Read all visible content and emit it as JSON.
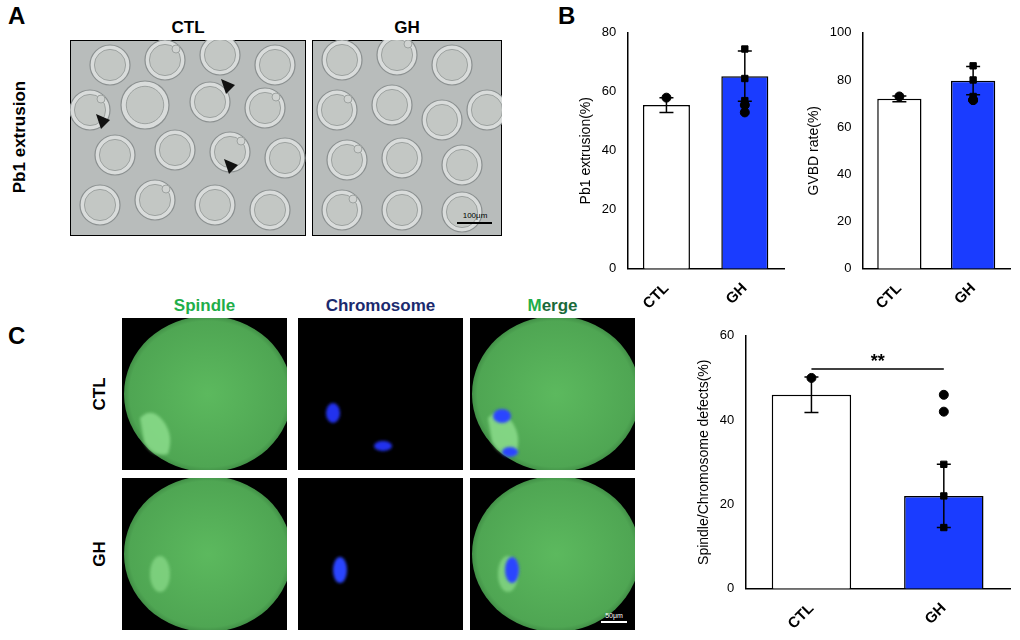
{
  "panels": {
    "A": {
      "label": "A",
      "row_label": "Pb1 extrusion",
      "columns": [
        "CTL",
        "GH"
      ],
      "scale_bar": "100μm"
    },
    "B": {
      "label": "B"
    },
    "C": {
      "label": "C",
      "columns": [
        "Spindle",
        "Chromosome",
        "Merge"
      ],
      "rows": [
        "CTL",
        "GH"
      ],
      "scale_bar": "50μm"
    }
  },
  "chart_data": [
    {
      "type": "bar",
      "y_label": "Pb1 extrusion(%)",
      "categories": [
        "CTL",
        "GH"
      ],
      "values": [
        55.5,
        65.3
      ],
      "error": [
        2.5,
        8.5
      ],
      "points": [
        [
          58,
          55.5,
          53
        ],
        [
          74.5,
          64.5,
          57
        ]
      ],
      "colors": [
        "#ffffff",
        "#1a3cff"
      ],
      "ylim": [
        0,
        80
      ],
      "yticks": [
        0,
        20,
        40,
        60,
        80
      ],
      "grid": false
    },
    {
      "type": "bar",
      "y_label": "GVBD rate(%)",
      "categories": [
        "CTL",
        "GH"
      ],
      "values": [
        72,
        79.7
      ],
      "error": [
        1.2,
        6
      ],
      "points": [
        [
          73,
          71.5,
          71.5
        ],
        [
          86,
          80,
          73
        ]
      ],
      "colors": [
        "#ffffff",
        "#1a3cff"
      ],
      "ylim": [
        0,
        100
      ],
      "yticks": [
        0,
        20,
        40,
        60,
        80,
        100
      ],
      "grid": false
    },
    {
      "type": "bar",
      "y_label": "Spindle/Chromosome defects(%)",
      "categories": [
        "CTL",
        "GH"
      ],
      "values": [
        46,
        22
      ],
      "error": [
        4.2,
        7.5
      ],
      "points": [
        [
          50,
          46,
          42
        ],
        [
          29.5,
          22,
          14.5
        ]
      ],
      "colors": [
        "#ffffff",
        "#1a3cff"
      ],
      "ylim": [
        0,
        60
      ],
      "yticks": [
        0,
        20,
        40,
        60
      ],
      "grid": false,
      "annotation": "**"
    }
  ]
}
